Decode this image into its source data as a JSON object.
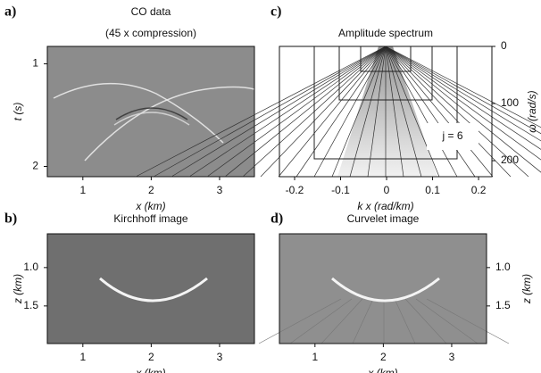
{
  "chart_data": [
    {
      "type": "image",
      "panel_label": "a)",
      "title": "CO data",
      "subtitle": "(45 x compression)",
      "x_label": "x (km)",
      "y_label": "t (s)",
      "xlim": [
        0.48,
        3.51
      ],
      "ylim": [
        0.83,
        2.1
      ],
      "xticks": [
        1,
        2,
        3
      ],
      "yticks": [
        1,
        2
      ],
      "y_axis_side": "left"
    },
    {
      "type": "image",
      "panel_label": "c)",
      "title": "Amplitude spectrum",
      "x_label": "k x (rad/km)",
      "y_label": "ω (rad/s)",
      "annotation": "j = 6",
      "xlim": [
        -0.233,
        0.229
      ],
      "ylim": [
        0,
        228
      ],
      "xticks": [
        -0.2,
        -0.1,
        0,
        0.1,
        0.2
      ],
      "yticks": [
        0,
        100,
        200
      ],
      "y_axis_side": "right"
    },
    {
      "type": "image",
      "panel_label": "b)",
      "title": "Kirchhoff image",
      "x_label": "x (km)",
      "y_label": "z (km)",
      "xlim": [
        0.48,
        3.51
      ],
      "ylim": [
        0.56,
        1.99
      ],
      "xticks": [
        1,
        2,
        3
      ],
      "yticks": [
        {
          "value": 1,
          "label": "1.0"
        },
        1.5
      ],
      "y_axis_side": "left"
    },
    {
      "type": "image",
      "panel_label": "d)",
      "title": "Curvelet image",
      "x_label": "x (km)",
      "y_label": "z (km)",
      "xlim": [
        0.48,
        3.51
      ],
      "ylim": [
        0.56,
        1.99
      ],
      "xticks": [
        1,
        2,
        3
      ],
      "yticks": [
        {
          "value": 1,
          "label": "1.0"
        },
        1.5
      ],
      "y_axis_side": "right"
    }
  ]
}
